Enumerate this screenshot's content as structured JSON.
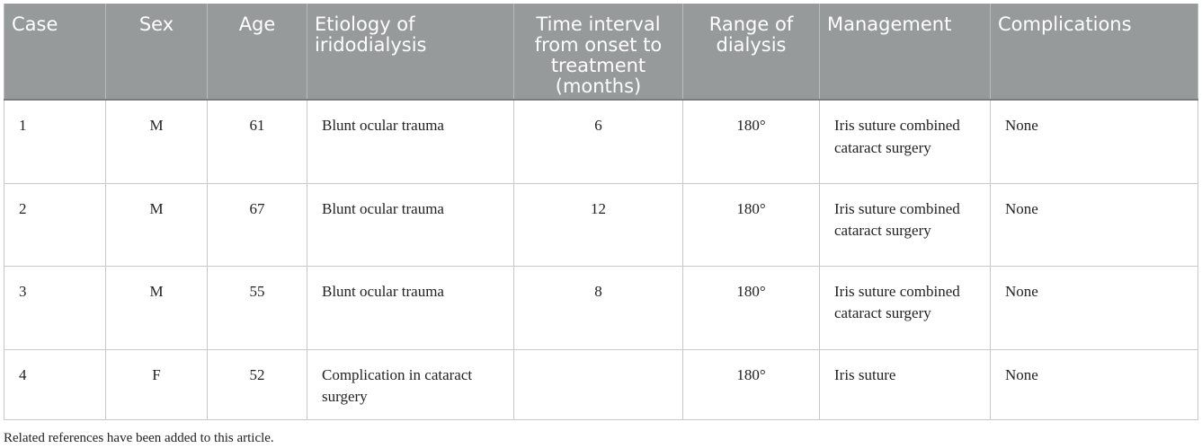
{
  "table": {
    "headers": [
      "Case",
      "Sex",
      "Age",
      "Etiology of iridodialysis",
      "Time interval from onset to treatment (months)",
      "Range of dialysis",
      "Management",
      "Complications"
    ],
    "rows": [
      [
        "1",
        "M",
        "61",
        "Blunt ocular trauma",
        "6",
        "180°",
        "Iris suture combined cataract surgery",
        "None"
      ],
      [
        "2",
        "M",
        "67",
        "Blunt ocular trauma",
        "12",
        "180°",
        "Iris suture combined cataract surgery",
        "None"
      ],
      [
        "3",
        "M",
        "55",
        "Blunt ocular trauma",
        "8",
        "180°",
        "Iris suture combined cataract surgery",
        "None"
      ],
      [
        "4",
        "F",
        "52",
        "Complication in cataract surgery",
        "",
        "180°",
        "Iris suture",
        "None"
      ]
    ]
  },
  "footnote": "Related references have been added to this article.",
  "colors": {
    "header_background": "#979a9b",
    "header_text": "#ffffff",
    "body_text": "#222222",
    "grid_lines": "#c9c9c9"
  }
}
